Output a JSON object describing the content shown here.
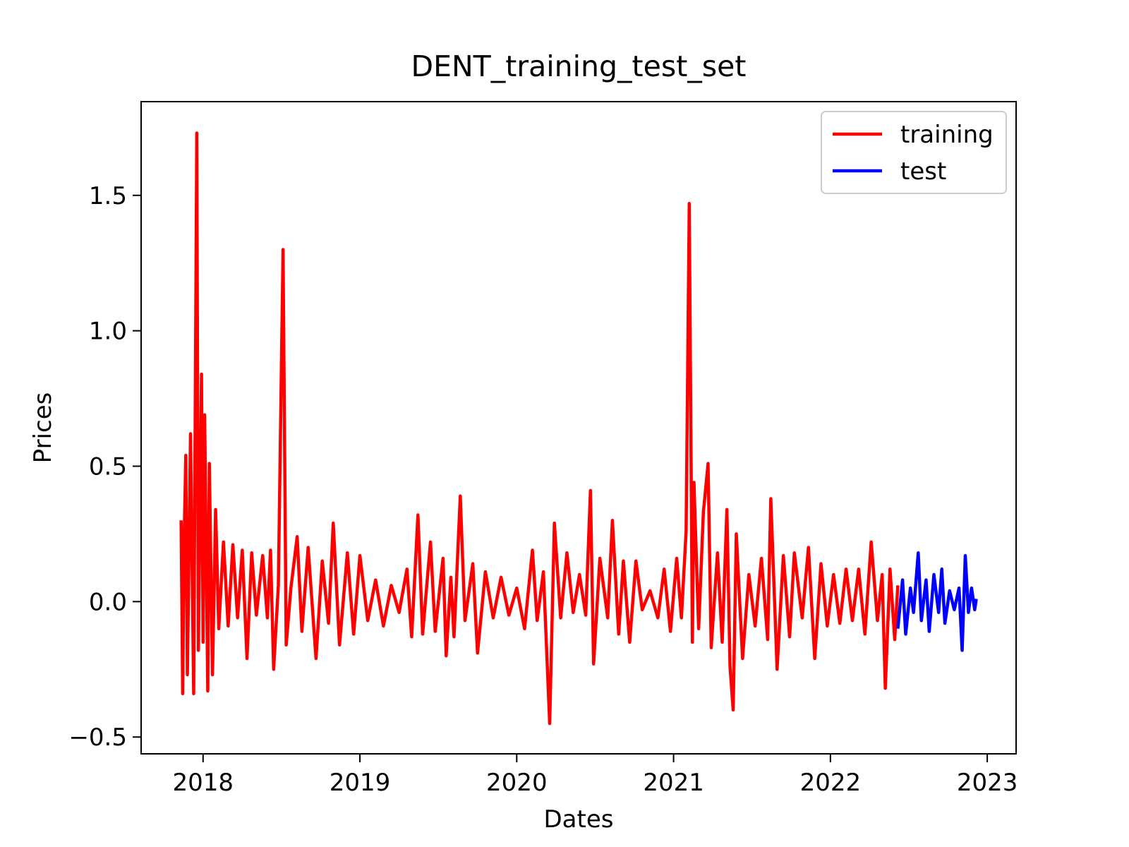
{
  "chart_data": {
    "type": "line",
    "title": "DENT_training_test_set",
    "x_label": "Dates",
    "y_label": "Prices",
    "xlim": [
      2017.605,
      2023.184
    ],
    "xticks": [
      2018,
      2019,
      2020,
      2021,
      2022,
      2023
    ],
    "ylim": [
      -0.562,
      1.846
    ],
    "yticks": [
      {
        "value": -0.5,
        "label": "−0.5"
      },
      {
        "value": 0,
        "label": "0.0"
      },
      0.5,
      {
        "value": 1,
        "label": "1.0"
      },
      1.5
    ],
    "legend": "upper right",
    "series": [
      {
        "name": "training",
        "color": "#ff0000",
        "x": [
          2017.86,
          2017.87,
          2017.88,
          2017.89,
          2017.9,
          2017.92,
          2017.94,
          2017.96,
          2017.97,
          2017.99,
          2018.0,
          2018.01,
          2018.03,
          2018.04,
          2018.06,
          2018.08,
          2018.1,
          2018.13,
          2018.16,
          2018.19,
          2018.22,
          2018.25,
          2018.28,
          2018.31,
          2018.34,
          2018.38,
          2018.41,
          2018.43,
          2018.45,
          2018.48,
          2018.51,
          2018.53,
          2018.56,
          2018.6,
          2018.63,
          2018.67,
          2018.72,
          2018.76,
          2018.8,
          2018.83,
          2018.87,
          2018.92,
          2018.96,
          2019.0,
          2019.05,
          2019.1,
          2019.15,
          2019.2,
          2019.25,
          2019.3,
          2019.33,
          2019.37,
          2019.4,
          2019.45,
          2019.48,
          2019.53,
          2019.55,
          2019.58,
          2019.6,
          2019.64,
          2019.67,
          2019.72,
          2019.75,
          2019.8,
          2019.85,
          2019.9,
          2019.95,
          2020.0,
          2020.05,
          2020.1,
          2020.13,
          2020.17,
          2020.21,
          2020.24,
          2020.28,
          2020.32,
          2020.36,
          2020.4,
          2020.44,
          2020.47,
          2020.49,
          2020.53,
          2020.58,
          2020.61,
          2020.65,
          2020.68,
          2020.72,
          2020.76,
          2020.8,
          2020.85,
          2020.9,
          2020.94,
          2020.98,
          2021.02,
          2021.05,
          2021.08,
          2021.1,
          2021.12,
          2021.13,
          2021.16,
          2021.19,
          2021.22,
          2021.24,
          2021.28,
          2021.31,
          2021.34,
          2021.36,
          2021.38,
          2021.4,
          2021.44,
          2021.48,
          2021.52,
          2021.56,
          2021.6,
          2021.62,
          2021.66,
          2021.7,
          2021.74,
          2021.77,
          2021.82,
          2021.86,
          2021.9,
          2021.94,
          2021.98,
          2022.02,
          2022.06,
          2022.1,
          2022.14,
          2022.18,
          2022.22,
          2022.26,
          2022.3,
          2022.33,
          2022.35,
          2022.38,
          2022.41,
          2022.43
        ],
        "values": [
          0.3,
          -0.34,
          0.25,
          0.54,
          -0.27,
          0.62,
          -0.34,
          1.73,
          -0.18,
          0.84,
          -0.15,
          0.69,
          -0.33,
          0.51,
          -0.27,
          0.34,
          -0.1,
          0.22,
          -0.09,
          0.21,
          -0.06,
          0.19,
          -0.21,
          0.18,
          -0.05,
          0.17,
          -0.06,
          0.19,
          -0.25,
          0.06,
          1.3,
          -0.16,
          0.05,
          0.24,
          -0.11,
          0.2,
          -0.21,
          0.15,
          -0.08,
          0.29,
          -0.16,
          0.18,
          -0.12,
          0.17,
          -0.07,
          0.08,
          -0.09,
          0.06,
          -0.04,
          0.12,
          -0.13,
          0.32,
          -0.12,
          0.22,
          -0.11,
          0.16,
          -0.2,
          0.09,
          -0.13,
          0.39,
          -0.07,
          0.14,
          -0.19,
          0.11,
          -0.06,
          0.09,
          -0.05,
          0.05,
          -0.1,
          0.19,
          -0.07,
          0.11,
          -0.45,
          0.29,
          -0.06,
          0.18,
          -0.04,
          0.1,
          -0.05,
          0.41,
          -0.23,
          0.16,
          -0.06,
          0.3,
          -0.12,
          0.15,
          -0.15,
          0.15,
          -0.03,
          0.04,
          -0.06,
          0.12,
          -0.11,
          0.16,
          -0.06,
          0.26,
          1.47,
          -0.15,
          0.44,
          -0.1,
          0.33,
          0.51,
          -0.17,
          0.18,
          -0.15,
          0.34,
          -0.24,
          -0.4,
          0.25,
          -0.21,
          0.1,
          -0.09,
          0.16,
          -0.14,
          0.38,
          -0.25,
          0.17,
          -0.13,
          0.18,
          -0.06,
          0.2,
          -0.21,
          0.14,
          -0.09,
          0.1,
          -0.08,
          0.12,
          -0.07,
          0.12,
          -0.12,
          0.22,
          -0.07,
          0.1,
          -0.32,
          0.12,
          -0.14,
          0.06
        ]
      },
      {
        "name": "test",
        "color": "#0000ff",
        "x": [
          2022.43,
          2022.46,
          2022.48,
          2022.51,
          2022.53,
          2022.56,
          2022.58,
          2022.61,
          2022.63,
          2022.66,
          2022.69,
          2022.71,
          2022.73,
          2022.76,
          2022.79,
          2022.82,
          2022.84,
          2022.86,
          2022.88,
          2022.9,
          2022.92,
          2022.93
        ],
        "values": [
          -0.1,
          0.08,
          -0.12,
          0.05,
          -0.04,
          0.18,
          -0.07,
          0.08,
          -0.11,
          0.1,
          -0.04,
          0.12,
          -0.08,
          0.04,
          -0.03,
          0.05,
          -0.18,
          0.17,
          -0.04,
          0.05,
          -0.03,
          0.01
        ]
      }
    ]
  }
}
